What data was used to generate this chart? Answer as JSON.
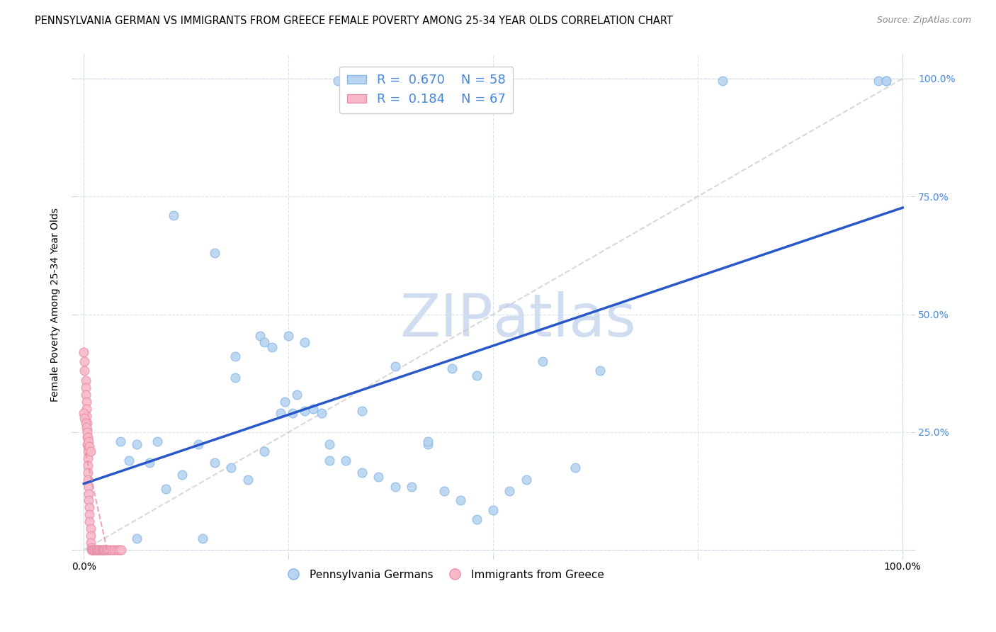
{
  "title": "PENNSYLVANIA GERMAN VS IMMIGRANTS FROM GREECE FEMALE POVERTY AMONG 25-34 YEAR OLDS CORRELATION CHART",
  "source": "Source: ZipAtlas.com",
  "ylabel": "Female Poverty Among 25-34 Year Olds",
  "r_blue": 0.67,
  "n_blue": 58,
  "r_pink": 0.184,
  "n_pink": 67,
  "blue_color": "#b8d4f0",
  "blue_edge": "#88b8e8",
  "pink_color": "#f8b8c8",
  "pink_edge": "#e890a8",
  "line_blue": "#2858c8",
  "line_pink": "#e890a8",
  "line_diag": "#c8c8c8",
  "watermark_color": "#d0ddf0",
  "blue_scatter_x": [
    0.31,
    0.33,
    0.11,
    0.16,
    0.185,
    0.185,
    0.045,
    0.055,
    0.065,
    0.08,
    0.09,
    0.1,
    0.12,
    0.14,
    0.16,
    0.18,
    0.2,
    0.22,
    0.24,
    0.26,
    0.28,
    0.3,
    0.32,
    0.34,
    0.36,
    0.38,
    0.4,
    0.42,
    0.44,
    0.46,
    0.48,
    0.5,
    0.52,
    0.54,
    0.56,
    0.6,
    0.63,
    0.25,
    0.27,
    0.29,
    0.245,
    0.255,
    0.215,
    0.22,
    0.23,
    0.27,
    0.3,
    0.34,
    0.38,
    0.42,
    0.45,
    0.48,
    0.065,
    0.145,
    0.78,
    0.97,
    0.98,
    0.98
  ],
  "blue_scatter_y": [
    0.995,
    0.995,
    0.71,
    0.63,
    0.41,
    0.365,
    0.23,
    0.19,
    0.225,
    0.185,
    0.23,
    0.13,
    0.16,
    0.225,
    0.185,
    0.175,
    0.15,
    0.21,
    0.29,
    0.33,
    0.3,
    0.19,
    0.19,
    0.165,
    0.155,
    0.135,
    0.135,
    0.225,
    0.125,
    0.105,
    0.065,
    0.085,
    0.125,
    0.15,
    0.4,
    0.175,
    0.38,
    0.455,
    0.44,
    0.29,
    0.315,
    0.29,
    0.455,
    0.44,
    0.43,
    0.295,
    0.225,
    0.295,
    0.39,
    0.23,
    0.385,
    0.37,
    0.025,
    0.025,
    0.995,
    0.995,
    0.995,
    0.995
  ],
  "pink_scatter_x": [
    0.0,
    0.001,
    0.001,
    0.002,
    0.002,
    0.002,
    0.003,
    0.003,
    0.003,
    0.004,
    0.004,
    0.004,
    0.004,
    0.005,
    0.005,
    0.005,
    0.005,
    0.005,
    0.006,
    0.006,
    0.006,
    0.007,
    0.007,
    0.007,
    0.008,
    0.008,
    0.008,
    0.009,
    0.009,
    0.01,
    0.01,
    0.011,
    0.012,
    0.013,
    0.014,
    0.015,
    0.016,
    0.017,
    0.018,
    0.019,
    0.02,
    0.021,
    0.022,
    0.023,
    0.024,
    0.025,
    0.026,
    0.027,
    0.028,
    0.03,
    0.032,
    0.034,
    0.036,
    0.038,
    0.04,
    0.042,
    0.044,
    0.046,
    0.0,
    0.001,
    0.002,
    0.003,
    0.004,
    0.005,
    0.006,
    0.007,
    0.008
  ],
  "pink_scatter_y": [
    0.42,
    0.4,
    0.38,
    0.36,
    0.345,
    0.33,
    0.315,
    0.3,
    0.285,
    0.27,
    0.255,
    0.24,
    0.225,
    0.21,
    0.195,
    0.18,
    0.165,
    0.15,
    0.135,
    0.12,
    0.105,
    0.09,
    0.075,
    0.06,
    0.045,
    0.03,
    0.015,
    0.005,
    0.0,
    0.0,
    0.0,
    0.0,
    0.0,
    0.0,
    0.0,
    0.0,
    0.0,
    0.0,
    0.0,
    0.0,
    0.0,
    0.0,
    0.0,
    0.0,
    0.0,
    0.0,
    0.0,
    0.0,
    0.0,
    0.0,
    0.0,
    0.0,
    0.0,
    0.0,
    0.0,
    0.0,
    0.0,
    0.0,
    0.29,
    0.28,
    0.27,
    0.26,
    0.25,
    0.24,
    0.23,
    0.22,
    0.21
  ],
  "xlim": [
    -0.01,
    1.01
  ],
  "ylim": [
    -0.01,
    1.05
  ],
  "xtick_positions": [
    0.0,
    0.25,
    0.5,
    0.75,
    1.0
  ],
  "ytick_positions": [
    0.0,
    0.25,
    0.5,
    0.75,
    1.0
  ],
  "grid_color": "#d8e4f0",
  "title_fontsize": 10.5,
  "axis_label_fontsize": 10,
  "tick_fontsize": 10,
  "legend_fontsize": 13,
  "marker_size": 85,
  "marker_linewidth": 0.8,
  "blue_label_color": "#4488dd",
  "right_tick_color": "#4488dd"
}
